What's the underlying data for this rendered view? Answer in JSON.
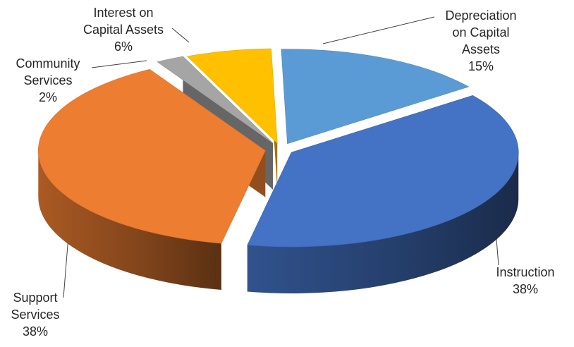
{
  "chart_data": {
    "type": "pie",
    "style": "3d-exploded",
    "legend": "none",
    "categories": [
      "Instruction",
      "Support Services",
      "Community Services",
      "Interest on Capital Assets",
      "Depreciation on Capital Assets"
    ],
    "values": [
      38,
      38,
      2,
      6,
      15
    ],
    "unit": "%",
    "colors": [
      "#4472C4",
      "#ED7D31",
      "#A5A5A5",
      "#FFC000",
      "#5B9BD5"
    ]
  },
  "labels": [
    {
      "lines": [
        "Instruction"
      ],
      "value": "38%"
    },
    {
      "lines": [
        "Support",
        "Services"
      ],
      "value": "38%"
    },
    {
      "lines": [
        "Community",
        "Services"
      ],
      "value": "2%"
    },
    {
      "lines": [
        "Interest on",
        "Capital Assets"
      ],
      "value": "6%"
    },
    {
      "lines": [
        "Depreciation",
        "on Capital",
        "Assets"
      ],
      "value": "15%"
    }
  ]
}
